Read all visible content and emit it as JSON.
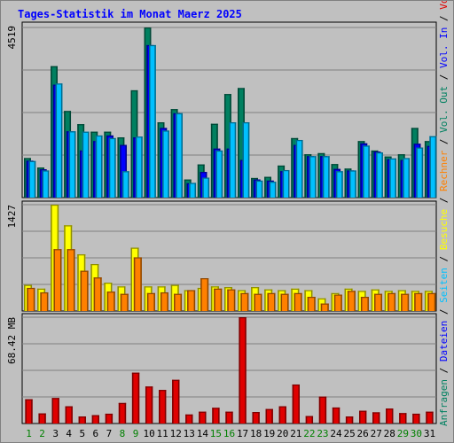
{
  "chart_data": {
    "type": "bar",
    "title": "Tages-Statistik im Monat Maerz 2025",
    "categories": [
      "1",
      "2",
      "3",
      "4",
      "5",
      "6",
      "7",
      "8",
      "9",
      "10",
      "11",
      "12",
      "13",
      "14",
      "15",
      "16",
      "17",
      "18",
      "19",
      "20",
      "21",
      "22",
      "23",
      "24",
      "25",
      "26",
      "27",
      "28",
      "29",
      "30",
      "31"
    ],
    "weekend_days": [
      "1",
      "2",
      "8",
      "9",
      "15",
      "16",
      "22",
      "23",
      "29",
      "30"
    ],
    "panels": [
      {
        "id": "requests",
        "ymax_label": "4519",
        "ymax": 4519,
        "series": [
          {
            "name": "Anfragen",
            "color": "#008060",
            "values": [
              1050,
              800,
              3490,
              2300,
              1950,
              1750,
              1750,
              1600,
              2850,
              4519,
              2000,
              2350,
              480,
              880,
              1960,
              2750,
              2910,
              520,
              550,
              850,
              1580,
              1150,
              1180,
              890,
              770,
              1500,
              1250,
              1090,
              1150,
              1850,
              1500
            ]
          },
          {
            "name": "Dateien",
            "color": "#0000ff",
            "values": [
              980,
              750,
              3000,
              1760,
              1250,
              1500,
              1650,
              1400,
              1600,
              4050,
              1850,
              2240,
              380,
              680,
              1300,
              1300,
              1000,
              480,
              450,
              700,
              1400,
              1100,
              1100,
              760,
              720,
              1440,
              1220,
              1020,
              1000,
              1430,
              1370
            ]
          },
          {
            "name": "Seiten",
            "color": "#00c0ff",
            "values": [
              970,
              720,
              3030,
              1760,
              1750,
              1650,
              1580,
              700,
              1620,
              4050,
              1780,
              2240,
              390,
              530,
              1250,
              2000,
              2000,
              450,
              420,
              730,
              1530,
              1100,
              1100,
              700,
              720,
              1380,
              1200,
              1040,
              1050,
              1330,
              1630
            ]
          }
        ]
      },
      {
        "id": "visits",
        "ymax_label": "1427",
        "ymax": 1427,
        "series": [
          {
            "name": "Besuche",
            "color": "#ffff00",
            "values": [
              350,
              300,
              1427,
              1150,
              760,
              630,
              380,
              330,
              850,
              330,
              330,
              350,
              280,
              310,
              330,
              320,
              280,
              320,
              290,
              280,
              300,
              280,
              170,
              240,
              300,
              270,
              290,
              270,
              280,
              270,
              270
            ]
          },
          {
            "name": "Rechner",
            "color": "#ff8000",
            "values": [
              310,
              250,
              830,
              830,
              540,
              450,
              260,
              230,
              720,
              240,
              250,
              230,
              280,
              440,
              300,
              290,
              240,
              230,
              240,
              230,
              240,
              190,
              100,
              220,
              270,
              190,
              230,
              240,
              230,
              240,
              240
            ]
          }
        ]
      },
      {
        "id": "volume",
        "ymax_label": "68.42 MB",
        "ymax": 68.42,
        "series": [
          {
            "name": "Volumen",
            "color": "#e00000",
            "values": [
              15.6,
              6.5,
              16.4,
              11.1,
              4.5,
              5.4,
              6.3,
              13.2,
              32.7,
              23.8,
              21.6,
              28.1,
              5.8,
              7.6,
              10.1,
              7.6,
              68.42,
              7.4,
              9.3,
              11.1,
              25.1,
              4.8,
              17.3,
              10.3,
              4.5,
              8.2,
              7.2,
              9.6,
              6.7,
              6.3,
              7.6
            ]
          }
        ]
      }
    ],
    "right_labels": [
      {
        "text": "Anfragen",
        "color": "#008060"
      },
      {
        "text": " / ",
        "color": "#000000"
      },
      {
        "text": "Dateien",
        "color": "#0000ff"
      },
      {
        "text": " / ",
        "color": "#000000"
      },
      {
        "text": "Seiten",
        "color": "#00c0ff"
      },
      {
        "text": " / ",
        "color": "#000000"
      },
      {
        "text": "Besuche",
        "color": "#ffff00"
      },
      {
        "text": " / ",
        "color": "#000000"
      },
      {
        "text": "Rechner",
        "color": "#ff8000"
      },
      {
        "text": " / ",
        "color": "#000000"
      },
      {
        "text": "Vol. Out",
        "color": "#008060"
      },
      {
        "text": " / ",
        "color": "#000000"
      },
      {
        "text": "Vol. In",
        "color": "#0000ff"
      },
      {
        "text": " / ",
        "color": "#000000"
      },
      {
        "text": "Volumen",
        "color": "#e00000"
      }
    ],
    "grid": true,
    "colors": {
      "background": "#c0c0c0",
      "gridline": "#808080",
      "weekday_label": "#000000",
      "weekend_label": "#008000"
    }
  }
}
